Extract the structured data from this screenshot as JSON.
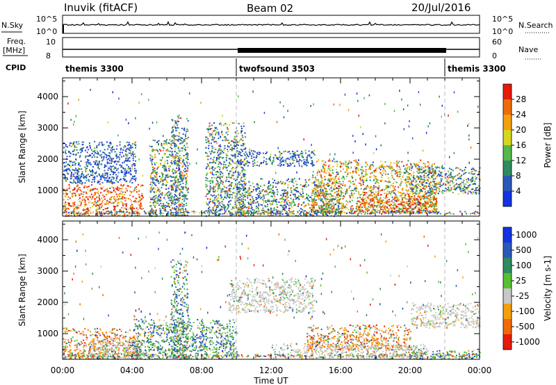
{
  "header": {
    "station": "Inuvik (fitACF)",
    "beam": "Beam 02",
    "date": "20/Jul/2016"
  },
  "strip_labels": {
    "nsky": "N.Sky",
    "freq": "Freq.",
    "mhz": "[MHz]",
    "cpid": "CPID",
    "nsearch": "N.Search",
    "nave": "Nave",
    "left_top": "10^5",
    "left_bottom": "10^0",
    "right_top": "10^5",
    "right_bottom": "10^0",
    "freq_top": "10",
    "freq_bottom": "8",
    "nave_top": "60",
    "nave_bottom": "0"
  },
  "cpid_segments": [
    {
      "label": "themis 3300",
      "start_hour": 0,
      "end_hour": 10
    },
    {
      "label": "twofsound 3503",
      "start_hour": 10,
      "end_hour": 22
    },
    {
      "label": "themis 3300",
      "start_hour": 22,
      "end_hour": 24
    }
  ],
  "chart_data": [
    {
      "type": "heatmap",
      "panel": "power",
      "ylabel": "Slant Range [km]",
      "xlim_hours": [
        0,
        24
      ],
      "ylim_km": [
        180,
        4600
      ],
      "yticks": [
        "1000",
        "2000",
        "3000",
        "4000"
      ],
      "colorbar": {
        "label": "Power [dB]",
        "range": [
          0,
          32
        ],
        "ticks": [
          "4",
          "8",
          "12",
          "16",
          "20",
          "24",
          "28"
        ],
        "colors": [
          "#1533e0",
          "#2a58b8",
          "#2f8a60",
          "#55b84a",
          "#d6d61e",
          "#f2a010",
          "#f06a0a",
          "#e81a0a"
        ]
      },
      "scatter_regions": [
        {
          "t0": 0.0,
          "t1": 4.6,
          "r0": 200,
          "r1": 1250,
          "level": "high"
        },
        {
          "t0": 0.0,
          "t1": 4.2,
          "r0": 1250,
          "r1": 2600,
          "level": "low"
        },
        {
          "t0": 5.0,
          "t1": 6.8,
          "r0": 200,
          "r1": 2700,
          "level": "mixed"
        },
        {
          "t0": 6.2,
          "t1": 7.2,
          "r0": 200,
          "r1": 3400,
          "level": "mixed"
        },
        {
          "t0": 8.2,
          "t1": 10.5,
          "r0": 200,
          "r1": 3200,
          "level": "mixed"
        },
        {
          "t0": 10.0,
          "t1": 14.5,
          "r0": 1800,
          "r1": 2300,
          "level": "low"
        },
        {
          "t0": 10.0,
          "t1": 16.0,
          "r0": 200,
          "r1": 1400,
          "level": "mixed"
        },
        {
          "t0": 14.3,
          "t1": 21.5,
          "r0": 300,
          "r1": 2000,
          "level": "highmid"
        },
        {
          "t0": 17.0,
          "t1": 21.5,
          "r0": 300,
          "r1": 900,
          "level": "high"
        },
        {
          "t0": 20.0,
          "t1": 24.0,
          "r0": 900,
          "r1": 1800,
          "level": "mixed"
        }
      ]
    },
    {
      "type": "heatmap",
      "panel": "velocity",
      "xlabel": "Time UT",
      "ylabel": "Slant Range [km]",
      "xlim_hours": [
        0,
        24
      ],
      "ylim_km": [
        180,
        4600
      ],
      "xticks": [
        "00:00",
        "04:00",
        "08:00",
        "12:00",
        "16:00",
        "20:00",
        "00:00"
      ],
      "yticks": [
        "1000",
        "2000",
        "3000",
        "4000"
      ],
      "colorbar": {
        "label": "Velocity [m s-1]",
        "ticks": [
          "1000",
          "500",
          "100",
          "25",
          "-25",
          "-100",
          "-500",
          "-1000"
        ],
        "colors": [
          "#1533e0",
          "#2a58b8",
          "#2f8a60",
          "#55c032",
          "#c8c8c8",
          "#f2a010",
          "#f06a0a",
          "#e81a0a"
        ]
      },
      "scatter_regions": [
        {
          "t0": 0.0,
          "t1": 4.5,
          "r0": 200,
          "r1": 1200,
          "level": "neg"
        },
        {
          "t0": 1.5,
          "t1": 4.5,
          "r0": 200,
          "r1": 800,
          "level": "ground"
        },
        {
          "t0": 4.0,
          "t1": 10.0,
          "r0": 200,
          "r1": 1500,
          "level": "pos"
        },
        {
          "t0": 6.2,
          "t1": 7.2,
          "r0": 200,
          "r1": 3400,
          "level": "pos"
        },
        {
          "t0": 9.5,
          "t1": 14.5,
          "r0": 1700,
          "r1": 2800,
          "level": "ground"
        },
        {
          "t0": 14.0,
          "t1": 20.0,
          "r0": 500,
          "r1": 1300,
          "level": "neg"
        },
        {
          "t0": 12.0,
          "t1": 21.0,
          "r0": 200,
          "r1": 700,
          "level": "ground"
        },
        {
          "t0": 20.0,
          "t1": 24.0,
          "r0": 1200,
          "r1": 2000,
          "level": "ground"
        },
        {
          "t0": 20.0,
          "t1": 24.0,
          "r0": 200,
          "r1": 500,
          "level": "pos"
        }
      ]
    }
  ],
  "vlines_hours": [
    10,
    22
  ]
}
